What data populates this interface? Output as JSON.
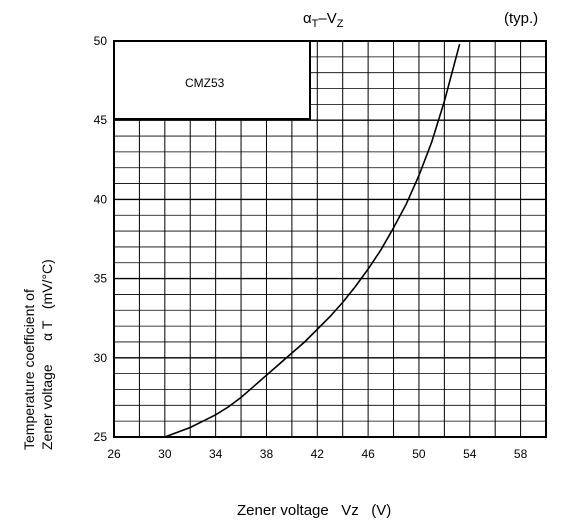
{
  "header": {
    "title_main": "α",
    "title_sub1": "T",
    "title_dash": "–",
    "title_v": "V",
    "title_sub2": "Z",
    "typ": "(typ.)"
  },
  "chart_data": {
    "type": "line",
    "title": "αT – VZ",
    "subtitle": "(typ.)",
    "xlabel": "Zener voltage   Vz   (V)",
    "ylabel": "Temperature coefficient of Zener voltage   α T   (mV/°C)",
    "ylabel_line1": "Temperature coefficient of",
    "ylabel_line2": "Zener voltage      α T   (mV/°C)",
    "xlim": [
      26,
      60
    ],
    "ylim": [
      25,
      50
    ],
    "x_ticks": [
      26,
      30,
      34,
      38,
      42,
      46,
      50,
      54,
      58
    ],
    "y_ticks": [
      25,
      30,
      35,
      40,
      45,
      50
    ],
    "grid": true,
    "legend_box_label": "CMZ53",
    "series": [
      {
        "x": [
          30,
          31,
          32,
          33,
          34,
          35,
          36,
          37,
          38,
          39,
          40,
          41,
          42,
          43,
          44,
          45,
          46,
          47,
          48,
          49,
          50,
          51,
          52,
          53.2
        ],
        "y": [
          25.0,
          25.3,
          25.6,
          26.0,
          26.4,
          26.9,
          27.5,
          28.2,
          28.9,
          29.6,
          30.3,
          31.0,
          31.8,
          32.6,
          33.5,
          34.5,
          35.6,
          36.8,
          38.2,
          39.7,
          41.5,
          43.6,
          46.2,
          49.8
        ]
      }
    ]
  }
}
